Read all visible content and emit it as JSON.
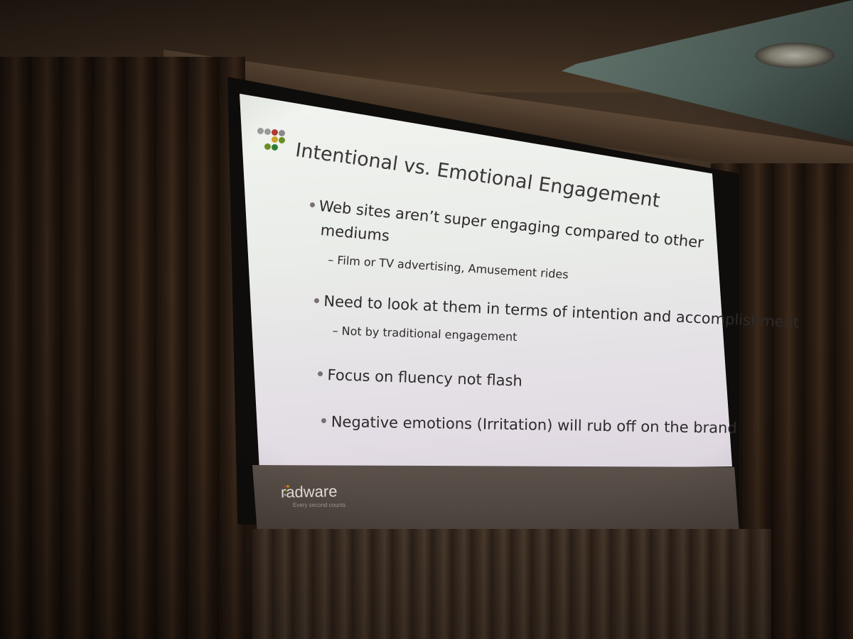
{
  "slide": {
    "title": "Intentional vs. Emotional Engagement",
    "bullets": [
      {
        "text_line1": "Web sites aren’t super engaging compared to other",
        "text_line2": "mediums",
        "sub": "– Film or TV advertising, Amusement rides"
      },
      {
        "text_line1": "Need to look at them in terms of intention and accomplishment",
        "sub": "– Not by traditional engagement"
      },
      {
        "text_line1": "Focus on fluency not flash"
      },
      {
        "text_line1": "Negative emotions (Irritation) will rub off on the brand"
      }
    ],
    "footer": {
      "brand": "radware",
      "tagline": "Every second counts"
    },
    "logo_colors": [
      "#8a8a8a",
      "#c0392b",
      "#d4a017",
      "#6b8e23",
      "#2e7d32"
    ]
  }
}
